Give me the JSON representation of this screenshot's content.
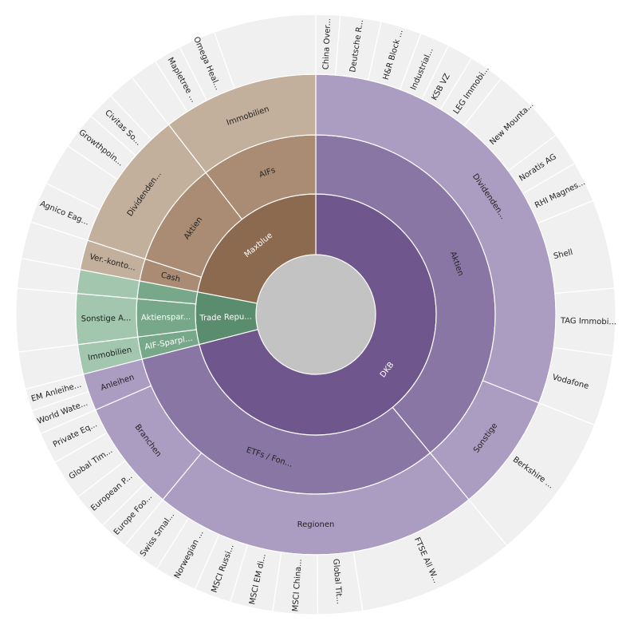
{
  "chart_data": {
    "type": "sunburst",
    "title": "",
    "colors": {
      "center": "#c3c3c3",
      "other": "#f0f0f0",
      "DKB": [
        "#6f568c",
        "#8a76a5",
        "#ab9cc1"
      ],
      "Maxblue": [
        "#8c6a4f",
        "#a98c73",
        "#c3b09c"
      ],
      "Trade Repu": [
        "#5a8d6d",
        "#78a88a",
        "#a3c6af"
      ]
    },
    "root": {
      "children": [
        {
          "name": "DKB",
          "label": "DKB",
          "value": 71,
          "group": "DKB",
          "children": [
            {
              "name": "Aktien",
              "label": "Aktien",
              "value": 39,
              "children": [
                {
                  "name": "Dividenden",
                  "label": "Dividenden...",
                  "value": 31,
                  "children": [
                    {
                      "label": "China Over...",
                      "value": 1.3
                    },
                    {
                      "label": "Deutsche R...",
                      "value": 2.2
                    },
                    {
                      "label": "H&R Block ...",
                      "value": 2.2
                    },
                    {
                      "label": "Industrial...",
                      "value": 1.6
                    },
                    {
                      "label": "KSB VZ",
                      "value": 1.4
                    },
                    {
                      "label": "LEG Immobi...",
                      "value": 1.9
                    },
                    {
                      "label": "New Mounta...",
                      "value": 4.2
                    },
                    {
                      "label": "Noratis AG",
                      "value": 1.8
                    },
                    {
                      "label": "RHI Magnes...",
                      "value": 2.2
                    },
                    {
                      "label": "Shell",
                      "value": 4.8
                    },
                    {
                      "label": "TAG Immobi...",
                      "value": 3.6
                    },
                    {
                      "label": "Vodafone",
                      "value": 3.8
                    }
                  ]
                },
                {
                  "name": "Sonstige",
                  "label": "Sonstige",
                  "value": 8,
                  "children": [
                    {
                      "label": "Berkshire ...",
                      "value": 8
                    }
                  ]
                }
              ]
            },
            {
              "name": "ETFs / Fon",
              "label": "ETFs / Fon...",
              "value": 32,
              "children": [
                {
                  "name": "Regionen",
                  "label": "Regionen",
                  "value": 22,
                  "children": [
                    {
                      "label": "FTSE All W...",
                      "value": 8.5
                    },
                    {
                      "label": "Global Tit...",
                      "value": 2.4
                    },
                    {
                      "label": "MSCI China...",
                      "value": 2.4
                    },
                    {
                      "label": "MSCI EM di...",
                      "value": 2.3
                    },
                    {
                      "label": "MSCI Russi...",
                      "value": 2.0
                    },
                    {
                      "label": "Norwegian ...",
                      "value": 2.3
                    },
                    {
                      "label": "Swiss Smal...",
                      "value": 2.1
                    }
                  ]
                },
                {
                  "name": "Branchen",
                  "label": "Branchen",
                  "value": 7.5,
                  "children": [
                    {
                      "label": "Europe Foo...",
                      "value": 1.6
                    },
                    {
                      "label": "European P...",
                      "value": 2.0
                    },
                    {
                      "label": "Global Tim...",
                      "value": 2.2
                    },
                    {
                      "label": "Private Eq...",
                      "value": 1.7
                    }
                  ]
                },
                {
                  "name": "Anleihen",
                  "label": "Anleihen",
                  "value": 2.5,
                  "children": [
                    {
                      "label": "World Wate...",
                      "value": 1.3
                    },
                    {
                      "label": "EM Anleihe...",
                      "value": 1.2
                    }
                  ]
                }
              ]
            }
          ]
        },
        {
          "name": "Trade Repu",
          "label": "Trade Repu...",
          "value": 7,
          "group": "Trade Repu",
          "children": [
            {
              "name": "AIF-Sparpl",
              "label": "AIF-Sparpl...",
              "value": 2,
              "children": [
                {
                  "label": "Immobilien",
                  "value": 2,
                  "children": [
                    {
                      "label": "",
                      "value": 2
                    }
                  ]
                }
              ]
            },
            {
              "name": "Aktienspar",
              "label": "Aktienspar...",
              "value": 3.4,
              "children": [
                {
                  "label": "Sonstige A...",
                  "value": 3.4,
                  "children": [
                    {
                      "label": "",
                      "value": 3.4
                    }
                  ]
                }
              ]
            },
            {
              "name": "Trade-small",
              "label": "",
              "value": 1.6,
              "children": [
                {
                  "label": "",
                  "value": 1.6,
                  "children": [
                    {
                      "label": "",
                      "value": 1.6
                    }
                  ]
                }
              ]
            }
          ]
        },
        {
          "name": "Maxblue",
          "label": "Maxblue",
          "value": 22,
          "group": "Maxblue",
          "children": [
            {
              "name": "Cash",
              "label": "Cash",
              "value": 2,
              "children": [
                {
                  "label": "Ver.-konto...",
                  "value": 2,
                  "children": [
                    {
                      "label": "",
                      "value": 2
                    }
                  ]
                }
              ]
            },
            {
              "name": "Aktien",
              "label": "Aktien",
              "value": 9.5,
              "children": [
                {
                  "label": "Dividenden...",
                  "value": 9.5,
                  "children": [
                    {
                      "label": "Agnico Eag...",
                      "value": 2.2
                    },
                    {
                      "label": "",
                      "value": 2.3
                    },
                    {
                      "label": "Growthpoin...",
                      "value": 2.0
                    },
                    {
                      "label": "Civitas So...",
                      "value": 1.5
                    },
                    {
                      "label": "",
                      "value": 1.5
                    }
                  ]
                }
              ]
            },
            {
              "name": "AIFs",
              "label": "AIFs",
              "value": 10.5,
              "children": [
                {
                  "label": "Immobilien",
                  "value": 10.5,
                  "children": [
                    {
                      "label": "",
                      "value": 1.5
                    },
                    {
                      "label": "Mapletree ...",
                      "value": 1.5
                    },
                    {
                      "label": "Omega Heal...",
                      "value": 2.0
                    },
                    {
                      "label": "",
                      "value": 5.5
                    }
                  ]
                }
              ]
            }
          ]
        }
      ]
    }
  }
}
